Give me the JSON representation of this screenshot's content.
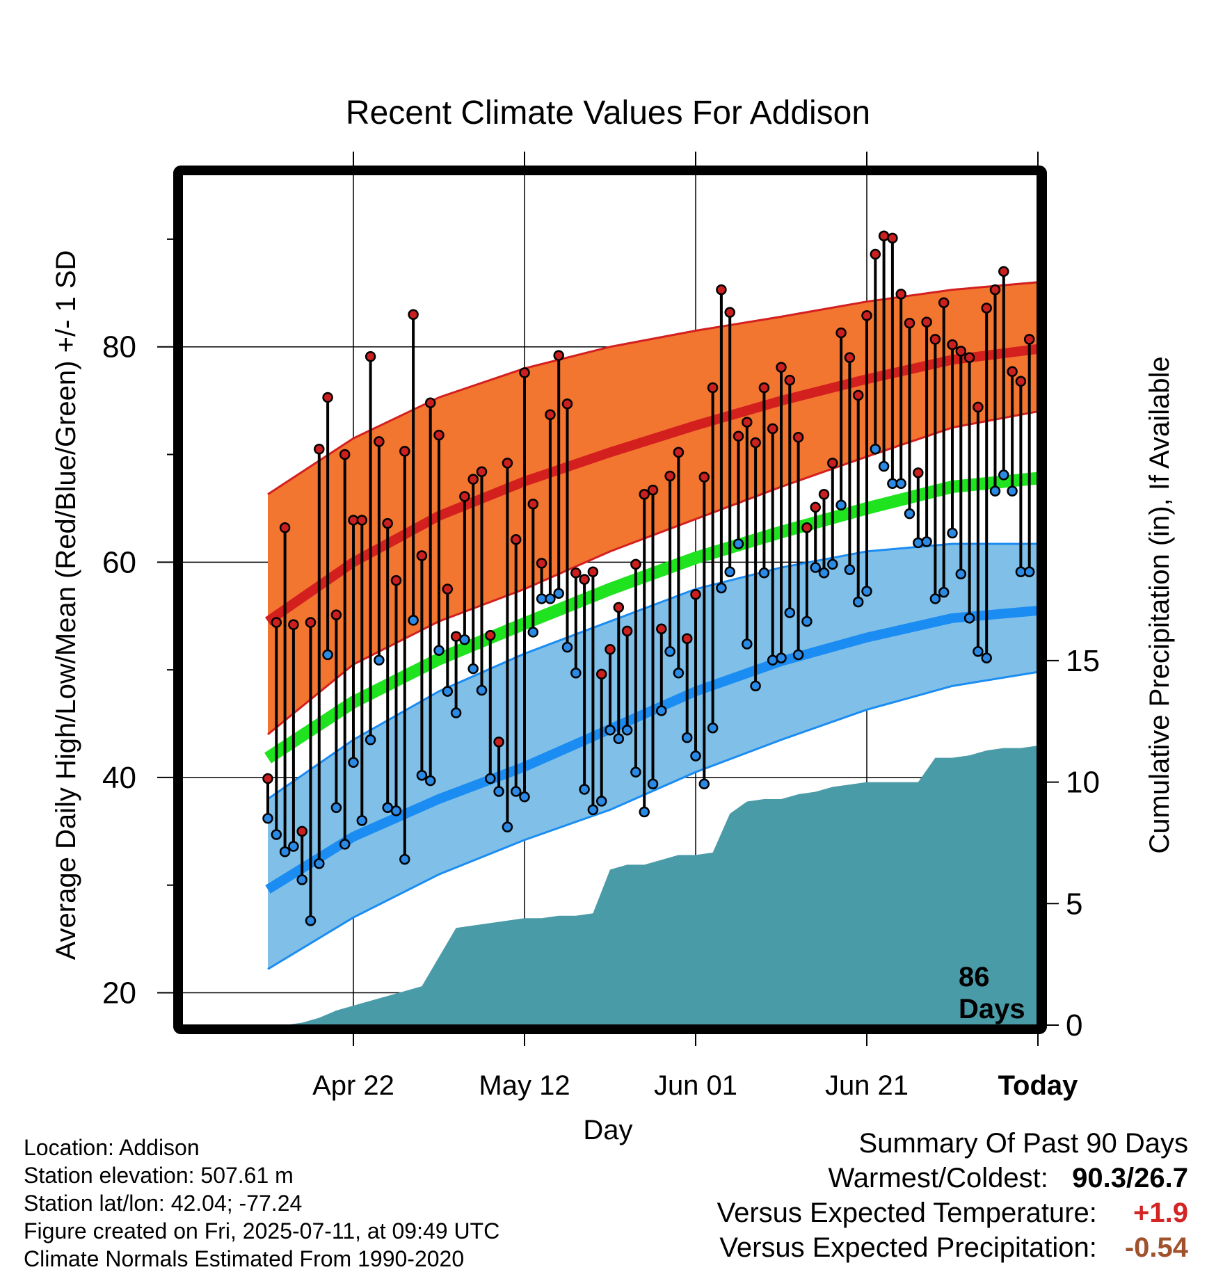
{
  "chart_data": {
    "type": "line",
    "title": "Recent Climate Values For Addison",
    "xlabel": "Day",
    "ylabel": "Average Daily High/Low/Mean (Red/Blue/Green) +/- 1 SD",
    "y2label": "Cumulative Precipitation (in), If Available",
    "xlim": [
      -10,
      90
    ],
    "ylim": [
      17,
      96
    ],
    "y2lim": [
      0,
      35
    ],
    "yticks": [
      "20",
      "40",
      "60",
      "80"
    ],
    "y2ticks": [
      "0",
      "5",
      "10",
      "15"
    ],
    "xticks": [
      {
        "day": 10,
        "label": "Apr 22"
      },
      {
        "day": 30,
        "label": "May 12"
      },
      {
        "day": 50,
        "label": "Jun 01"
      },
      {
        "day": 70,
        "label": "Jun 21"
      },
      {
        "day": 90,
        "label": "Today"
      }
    ],
    "grid": true,
    "today_marker": {
      "day": 90,
      "label_line1": "86",
      "label_line2": "Days"
    },
    "normals_days": [
      0,
      10,
      20,
      30,
      40,
      50,
      60,
      70,
      80,
      90,
      99
    ],
    "normal_high": [
      54.5,
      60.0,
      64.3,
      67.5,
      70.2,
      72.7,
      75.0,
      77.0,
      78.8,
      79.8,
      80.0
    ],
    "normal_high_upper": [
      66.3,
      71.5,
      75.3,
      78.0,
      80.0,
      81.5,
      82.8,
      84.2,
      85.3,
      86.0,
      86.0
    ],
    "normal_high_lower": [
      44.0,
      50.5,
      54.5,
      57.5,
      61.0,
      64.0,
      67.0,
      69.8,
      72.5,
      74.0,
      74.2
    ],
    "normal_mean": [
      41.8,
      47.0,
      51.0,
      54.3,
      57.5,
      60.4,
      62.8,
      65.0,
      67.0,
      67.8,
      67.8
    ],
    "normal_low": [
      29.6,
      34.5,
      38.0,
      41.0,
      44.5,
      48.0,
      50.8,
      53.0,
      54.8,
      55.5,
      55.6
    ],
    "normal_low_upper": [
      38.0,
      43.5,
      48.0,
      51.5,
      54.5,
      57.5,
      59.5,
      61.0,
      61.7,
      61.7,
      61.6
    ],
    "normal_low_lower": [
      22.2,
      27.0,
      31.0,
      34.2,
      37.0,
      40.5,
      43.5,
      46.3,
      48.5,
      49.8,
      50.0
    ],
    "obs_days": [
      0,
      1,
      2,
      3,
      4,
      5,
      6,
      7,
      8,
      9,
      10,
      11,
      12,
      13,
      14,
      15,
      16,
      17,
      18,
      19,
      20,
      21,
      22,
      23,
      24,
      25,
      26,
      27,
      28,
      29,
      30,
      31,
      32,
      33,
      34,
      35,
      36,
      37,
      38,
      39,
      40,
      41,
      42,
      43,
      44,
      45,
      46,
      47,
      48,
      49,
      50,
      51,
      52,
      53,
      54,
      55,
      56,
      57,
      58,
      59,
      60,
      61,
      62,
      63,
      64,
      65,
      66,
      67,
      68,
      69,
      70,
      71,
      72,
      73,
      74,
      75,
      76,
      77,
      78,
      79,
      80,
      81,
      82,
      83,
      84,
      85,
      86,
      87,
      88,
      89
    ],
    "obs_high": [
      39.9,
      54.4,
      63.2,
      54.2,
      35.0,
      54.4,
      70.5,
      75.3,
      55.1,
      70.0,
      63.9,
      63.9,
      79.1,
      71.2,
      63.6,
      58.3,
      70.3,
      83.0,
      60.6,
      74.8,
      71.8,
      57.5,
      53.1,
      66.1,
      67.7,
      68.4,
      53.2,
      43.3,
      69.2,
      62.1,
      77.6,
      65.4,
      59.9,
      73.7,
      79.2,
      74.7,
      59.0,
      58.4,
      59.1,
      49.6,
      51.9,
      55.8,
      53.6,
      59.8,
      66.3,
      66.7,
      53.8,
      68.0,
      70.2,
      52.9,
      57.0,
      67.9,
      76.2,
      85.3,
      83.2,
      71.7,
      73.0,
      71.1,
      76.2,
      72.4,
      78.1,
      76.9,
      71.6,
      63.2,
      65.1,
      66.3,
      69.2,
      81.3,
      79.0,
      75.5,
      82.9,
      88.6,
      90.3,
      90.1,
      84.9,
      82.2,
      68.3,
      82.3,
      80.7,
      84.1,
      80.2,
      79.6,
      79.0,
      74.4,
      83.6,
      85.3,
      87.0,
      77.7,
      76.8,
      80.7
    ],
    "obs_low": [
      36.2,
      34.7,
      33.1,
      33.6,
      30.5,
      26.7,
      32.0,
      51.4,
      37.2,
      33.8,
      41.4,
      36.0,
      43.5,
      50.9,
      37.2,
      36.9,
      32.4,
      54.6,
      40.2,
      39.7,
      51.8,
      48.0,
      46.0,
      52.8,
      50.1,
      48.1,
      39.9,
      38.7,
      35.4,
      38.7,
      38.2,
      53.5,
      56.6,
      56.6,
      57.1,
      52.1,
      49.7,
      38.9,
      37.0,
      37.8,
      44.4,
      43.6,
      44.4,
      40.5,
      36.8,
      39.4,
      46.2,
      51.7,
      49.7,
      43.7,
      42.0,
      39.4,
      44.6,
      57.6,
      59.1,
      61.7,
      52.4,
      48.5,
      59.0,
      50.9,
      51.1,
      55.3,
      51.4,
      54.5,
      59.5,
      59.0,
      59.8,
      65.3,
      59.3,
      56.3,
      57.3,
      70.5,
      68.9,
      67.3,
      67.3,
      64.5,
      61.8,
      61.9,
      56.6,
      57.2,
      62.7,
      58.9,
      54.8,
      51.7,
      51.1,
      66.6,
      68.1,
      66.6,
      59.1,
      59.1
    ],
    "precip_days": [
      0,
      2,
      4,
      6,
      8,
      10,
      12,
      14,
      16,
      18,
      20,
      22,
      24,
      26,
      28,
      30,
      32,
      34,
      36,
      38,
      40,
      42,
      44,
      46,
      48,
      50,
      52,
      54,
      56,
      58,
      60,
      62,
      64,
      66,
      68,
      70,
      72,
      74,
      76,
      78,
      80,
      82,
      84,
      86,
      88,
      90,
      92,
      94,
      96,
      99
    ],
    "precip_cum": [
      0.0,
      0.0,
      0.1,
      0.3,
      0.6,
      0.8,
      1.0,
      1.2,
      1.4,
      1.6,
      2.8,
      4.0,
      4.1,
      4.2,
      4.3,
      4.4,
      4.4,
      4.5,
      4.5,
      4.6,
      6.4,
      6.6,
      6.6,
      6.8,
      7.0,
      7.0,
      7.1,
      8.7,
      9.2,
      9.3,
      9.3,
      9.5,
      9.6,
      9.8,
      9.9,
      10.0,
      10.0,
      10.0,
      10.0,
      11.0,
      11.0,
      11.1,
      11.3,
      11.4,
      11.4,
      11.5,
      11.5,
      11.5,
      11.5,
      11.5
    ],
    "colors": {
      "high_band": "#f27530",
      "high_line": "#d41f1f",
      "mean_line": "#1ee31e",
      "low_band": "#80c0e8",
      "low_line": "#1a8cf2",
      "precip": "#4a9ba8",
      "high_dot": "#cc1f1f",
      "low_dot": "#2a8ae6"
    }
  },
  "footer": {
    "location": "Location: Addison",
    "elevation": "Station elevation: 507.61 m",
    "latlon": "Station lat/lon: 42.04; -77.24",
    "created": "Figure created on Fri, 2025-07-11, at 09:49 UTC",
    "normals": "Climate Normals Estimated From 1990-2020"
  },
  "summary": {
    "heading": "Summary Of Past 90 Days",
    "warm_cold_label": "Warmest/Coldest:",
    "warm_cold_value": "90.3/26.7",
    "temp_label": "Versus Expected Temperature:",
    "temp_value": "+1.9",
    "temp_color": "#d42424",
    "precip_label": "Versus Expected Precipitation:",
    "precip_value": "-0.54",
    "precip_color": "#a0522d"
  }
}
